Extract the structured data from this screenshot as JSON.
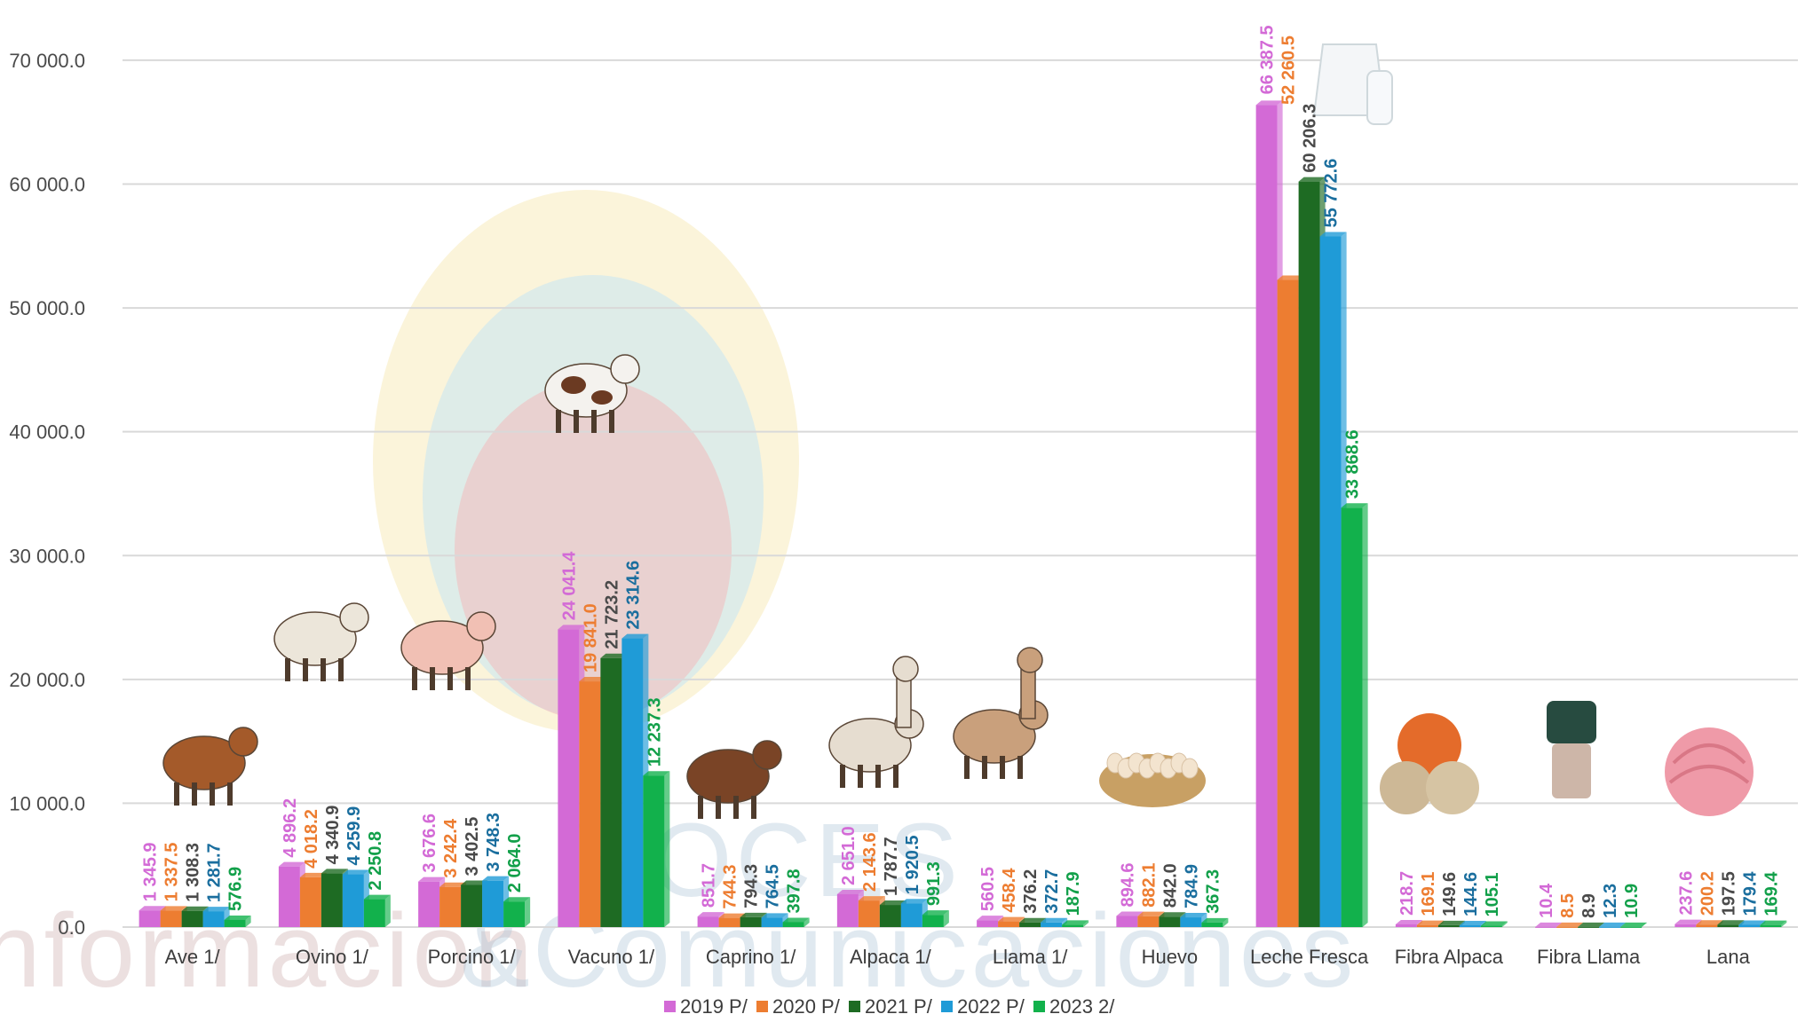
{
  "chart_data": {
    "type": "bar",
    "categories": [
      "Ave 1/",
      "Ovino 1/",
      "Porcino 1/",
      "Vacuno 1/",
      "Caprino 1/",
      "Alpaca 1/",
      "Llama 1/",
      "Huevo",
      "Leche Fresca",
      "Fibra Alpaca",
      "Fibra Llama",
      "Lana"
    ],
    "series": [
      {
        "name": "2019 P/",
        "color": "#d36ad6",
        "values": [
          1345.9,
          4896.2,
          3676.6,
          24041.4,
          851.7,
          2651.0,
          560.5,
          894.6,
          66387.5,
          218.7,
          10.4,
          237.6
        ],
        "labels": [
          "1 345.9",
          "4 896.2",
          "3 676.6",
          "24 041.4",
          "851.7",
          "2 651.0",
          "560.5",
          "894.6",
          "66 387.5",
          "218.7",
          "10.4",
          "237.6"
        ]
      },
      {
        "name": "2020 P/",
        "color": "#ed7d31",
        "values": [
          1337.5,
          4018.2,
          3242.4,
          19841.0,
          744.3,
          2143.6,
          458.4,
          882.1,
          52260.5,
          169.1,
          8.5,
          200.2
        ],
        "labels": [
          "1 337.5",
          "4 018.2",
          "3 242.4",
          "19 841.0",
          "744.3",
          "2 143.6",
          "458.4",
          "882.1",
          "52 260.5",
          "169.1",
          "8.5",
          "200.2"
        ]
      },
      {
        "name": "2021 P/",
        "color": "#1e6b23",
        "values": [
          1308.3,
          4340.9,
          3402.5,
          21723.2,
          794.3,
          1787.7,
          376.2,
          842.0,
          60206.3,
          149.6,
          8.9,
          197.5
        ],
        "labels": [
          "1 308.3",
          "4 340.9",
          "3 402.5",
          "21 723.2",
          "794.3",
          "1 787.7",
          "376.2",
          "842.0",
          "60 206.3",
          "149.6",
          "8.9",
          "197.5"
        ]
      },
      {
        "name": "2022 P/",
        "color": "#1f9bd7",
        "values": [
          1281.7,
          4259.9,
          3748.3,
          23314.6,
          764.5,
          1920.5,
          372.7,
          784.9,
          55772.6,
          144.6,
          12.3,
          179.4
        ],
        "labels": [
          "1 281.7",
          "4 259.9",
          "3 748.3",
          "23 314.6",
          "764.5",
          "1 920.5",
          "372.7",
          "784.9",
          "55 772.6",
          "144.6",
          "12.3",
          "179.4"
        ]
      },
      {
        "name": "2023 2/",
        "color": "#12b14c",
        "values": [
          576.9,
          2250.8,
          2064.0,
          12237.3,
          397.8,
          991.3,
          187.9,
          367.3,
          33868.6,
          105.1,
          10.9,
          169.4
        ],
        "labels": [
          "576.9",
          "2 250.8",
          "2 064.0",
          "12 237.3",
          "397.8",
          "991.3",
          "187.9",
          "367.3",
          "33 868.6",
          "105.1",
          "10.9",
          "169.4"
        ]
      }
    ],
    "label_colors": [
      "#d36ad6",
      "#ed7d31",
      "#4a4a4a",
      "#1a6e9e",
      "#12a04a"
    ],
    "yticks": [
      {
        "v": 0,
        "label": "0.0"
      },
      {
        "v": 10000,
        "label": "10 000.0"
      },
      {
        "v": 20000,
        "label": "20 000.0"
      },
      {
        "v": 30000,
        "label": "30 000.0"
      },
      {
        "v": 40000,
        "label": "40 000.0"
      },
      {
        "v": 50000,
        "label": "50 000.0"
      },
      {
        "v": 60000,
        "label": "60 000.0"
      },
      {
        "v": 70000,
        "label": "70 000.0"
      }
    ],
    "ylim": [
      0,
      72000
    ],
    "grid": true,
    "legend_position": "bottom",
    "title": "",
    "xlabel": "",
    "ylabel": ""
  },
  "watermark": {
    "line1": "VOCES",
    "line2a": "nformación",
    "line2b": "&",
    "line2c": "Comunicaciones"
  },
  "pictures": [
    "chicken",
    "sheep",
    "pig",
    "cow",
    "goat",
    "alpaca",
    "llama",
    "eggs-basket",
    "milk-jug",
    "yarn-balls",
    "fibre-skein",
    "wool-ball"
  ]
}
